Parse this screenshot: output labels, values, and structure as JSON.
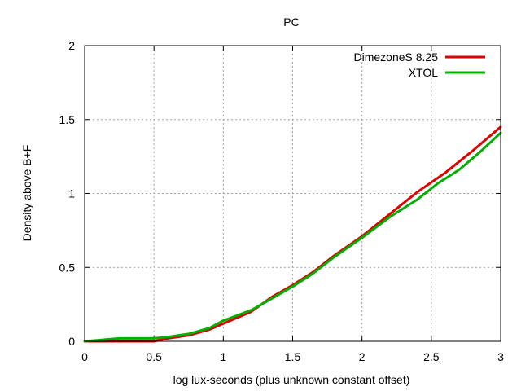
{
  "chart_data": {
    "type": "line",
    "title": "PC",
    "xlabel": "log lux-seconds (plus unknown constant offset)",
    "ylabel": "Density above B+F",
    "xlim": [
      0,
      3
    ],
    "ylim": [
      0,
      2
    ],
    "xticks": [
      0,
      0.5,
      1,
      1.5,
      2,
      2.5,
      3
    ],
    "xtick_labels": [
      "0",
      "0.5",
      "1",
      "1.5",
      "2",
      "2.5",
      "3"
    ],
    "yticks": [
      0,
      0.5,
      1,
      1.5,
      2
    ],
    "ytick_labels": [
      "0",
      "0.5",
      "1",
      "1.5",
      "2"
    ],
    "grid": true,
    "legend_position": "top-right",
    "series": [
      {
        "name": "DimezoneS 8.25",
        "color": "#e00000",
        "x": [
          0,
          0.3,
          0.5,
          0.6,
          0.75,
          0.9,
          1.0,
          1.2,
          1.35,
          1.5,
          1.65,
          1.8,
          2.0,
          2.2,
          2.4,
          2.6,
          2.8,
          3.0
        ],
        "y": [
          0,
          0,
          0,
          0.02,
          0.04,
          0.08,
          0.12,
          0.2,
          0.3,
          0.38,
          0.47,
          0.58,
          0.71,
          0.86,
          1.01,
          1.14,
          1.29,
          1.45
        ]
      },
      {
        "name": "XTOL",
        "color": "#00b000",
        "x": [
          0,
          0.25,
          0.5,
          0.6,
          0.75,
          0.9,
          1.0,
          1.2,
          1.35,
          1.5,
          1.65,
          1.8,
          2.0,
          2.2,
          2.4,
          2.55,
          2.7,
          2.85,
          3.0
        ],
        "y": [
          0,
          0.02,
          0.02,
          0.03,
          0.05,
          0.09,
          0.14,
          0.21,
          0.29,
          0.37,
          0.46,
          0.57,
          0.7,
          0.84,
          0.96,
          1.07,
          1.16,
          1.28,
          1.41
        ]
      }
    ]
  }
}
